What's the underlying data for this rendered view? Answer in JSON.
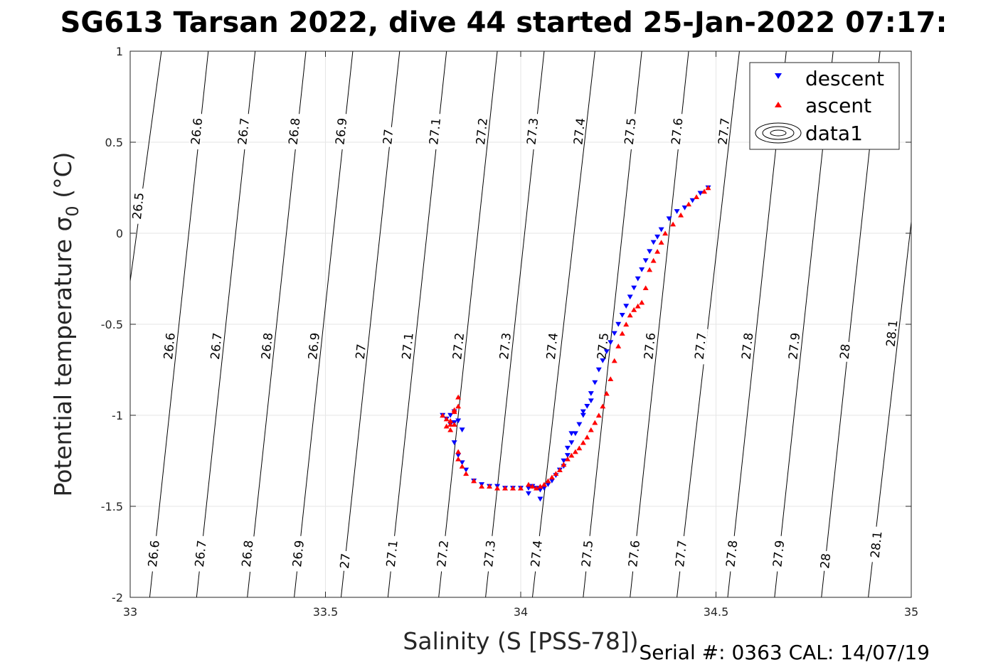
{
  "chart_data": {
    "type": "scatter",
    "title": "SG613 Tarsan 2022, dive 44 started 25-Jan-2022 07:17:",
    "xlabel": "Salinity (S [PSS-78])",
    "ylabel_main": "Potential temperature ",
    "ylabel_sigma": "σ",
    "ylabel_sub": "0",
    "ylabel_unit": " (°C)",
    "xlim": [
      33,
      35
    ],
    "ylim": [
      -2,
      1
    ],
    "xticks": [
      33,
      33.5,
      34,
      34.5,
      35
    ],
    "xtick_labels": [
      "33",
      "33.5",
      "34",
      "34.5",
      "35"
    ],
    "yticks": [
      -2,
      -1.5,
      -1,
      -0.5,
      0,
      0.5,
      1
    ],
    "ytick_labels": [
      "-2",
      "-1.5",
      "-1",
      "-0.5",
      "0",
      "0.5",
      "1"
    ],
    "grid": true,
    "legend_position": "top-right",
    "legend": [
      "descent",
      "ascent",
      "data1"
    ],
    "serial_note": "Serial #: 0363  CAL: 14/07/19",
    "colors": {
      "descent": "#0000ff",
      "ascent": "#ff0000",
      "contour": "#000000",
      "grid": "#e6e6e6"
    },
    "density_contours": {
      "levels": [
        "26.5",
        "26.6",
        "26.7",
        "26.8",
        "26.9",
        "27",
        "27.1",
        "27.2",
        "27.3",
        "27.4",
        "27.5",
        "27.6",
        "27.7",
        "27.8",
        "27.9",
        "28",
        "28.1"
      ],
      "lines": [
        {
          "level": "26.5",
          "s_at_tmin": 32.89,
          "s_at_tmax": 33.08
        },
        {
          "level": "26.6",
          "s_at_tmin": 33.05,
          "s_at_tmax": 33.2
        },
        {
          "level": "26.7",
          "s_at_tmin": 33.17,
          "s_at_tmax": 33.32
        },
        {
          "level": "26.8",
          "s_at_tmin": 33.3,
          "s_at_tmax": 33.45
        },
        {
          "level": "26.9",
          "s_at_tmin": 33.42,
          "s_at_tmax": 33.57
        },
        {
          "level": "27",
          "s_at_tmin": 33.54,
          "s_at_tmax": 33.69
        },
        {
          "level": "27.1",
          "s_at_tmin": 33.66,
          "s_at_tmax": 33.81
        },
        {
          "level": "27.2",
          "s_at_tmin": 33.79,
          "s_at_tmax": 33.94
        },
        {
          "level": "27.3",
          "s_at_tmin": 33.91,
          "s_at_tmax": 34.06
        },
        {
          "level": "27.4",
          "s_at_tmin": 34.03,
          "s_at_tmax": 34.19
        },
        {
          "level": "27.5",
          "s_at_tmin": 34.16,
          "s_at_tmax": 34.31
        },
        {
          "level": "27.6",
          "s_at_tmin": 34.28,
          "s_at_tmax": 34.43
        },
        {
          "level": "27.7",
          "s_at_tmin": 34.4,
          "s_at_tmax": 34.56
        },
        {
          "level": "27.8",
          "s_at_tmin": 34.53,
          "s_at_tmax": 34.68
        },
        {
          "level": "27.9",
          "s_at_tmin": 34.65,
          "s_at_tmax": 34.8
        },
        {
          "level": "28",
          "s_at_tmin": 34.77,
          "s_at_tmax": 34.92
        },
        {
          "level": "28.1",
          "s_at_tmin": 34.89,
          "s_at_tmax": 35.05
        }
      ],
      "labels": [
        {
          "text": "26.5",
          "s": 33.02,
          "t": 0.15
        },
        {
          "text": "26.6",
          "s": 33.17,
          "t": 0.56
        },
        {
          "text": "26.7",
          "s": 33.29,
          "t": 0.56
        },
        {
          "text": "26.8",
          "s": 33.42,
          "t": 0.56
        },
        {
          "text": "26.9",
          "s": 33.54,
          "t": 0.56
        },
        {
          "text": "27",
          "s": 33.66,
          "t": 0.53
        },
        {
          "text": "27.1",
          "s": 33.78,
          "t": 0.56
        },
        {
          "text": "27.2",
          "s": 33.9,
          "t": 0.56
        },
        {
          "text": "27.3",
          "s": 34.03,
          "t": 0.56
        },
        {
          "text": "27.4",
          "s": 34.15,
          "t": 0.56
        },
        {
          "text": "27.5",
          "s": 34.28,
          "t": 0.56
        },
        {
          "text": "27.6",
          "s": 34.4,
          "t": 0.56
        },
        {
          "text": "27.7",
          "s": 34.52,
          "t": 0.56
        },
        {
          "text": "26.6",
          "s": 33.1,
          "t": -0.62
        },
        {
          "text": "26.7",
          "s": 33.22,
          "t": -0.62
        },
        {
          "text": "26.8",
          "s": 33.35,
          "t": -0.62
        },
        {
          "text": "26.9",
          "s": 33.47,
          "t": -0.62
        },
        {
          "text": "27",
          "s": 33.59,
          "t": -0.65
        },
        {
          "text": "27.1",
          "s": 33.71,
          "t": -0.62
        },
        {
          "text": "27.2",
          "s": 33.84,
          "t": -0.62
        },
        {
          "text": "27.3",
          "s": 33.96,
          "t": -0.62
        },
        {
          "text": "27.4",
          "s": 34.08,
          "t": -0.62
        },
        {
          "text": "27.5",
          "s": 34.21,
          "t": -0.62
        },
        {
          "text": "27.6",
          "s": 34.33,
          "t": -0.62
        },
        {
          "text": "27.7",
          "s": 34.46,
          "t": -0.62
        },
        {
          "text": "27.8",
          "s": 34.58,
          "t": -0.62
        },
        {
          "text": "27.9",
          "s": 34.7,
          "t": -0.62
        },
        {
          "text": "28",
          "s": 34.83,
          "t": -0.65
        },
        {
          "text": "28.1",
          "s": 34.95,
          "t": -0.55
        },
        {
          "text": "26.6",
          "s": 33.06,
          "t": -1.76
        },
        {
          "text": "26.7",
          "s": 33.18,
          "t": -1.76
        },
        {
          "text": "26.8",
          "s": 33.3,
          "t": -1.76
        },
        {
          "text": "26.9",
          "s": 33.43,
          "t": -1.76
        },
        {
          "text": "27",
          "s": 33.55,
          "t": -1.8
        },
        {
          "text": "27.1",
          "s": 33.67,
          "t": -1.76
        },
        {
          "text": "27.2",
          "s": 33.8,
          "t": -1.76
        },
        {
          "text": "27.3",
          "s": 33.92,
          "t": -1.76
        },
        {
          "text": "27.4",
          "s": 34.04,
          "t": -1.76
        },
        {
          "text": "27.5",
          "s": 34.17,
          "t": -1.76
        },
        {
          "text": "27.6",
          "s": 34.29,
          "t": -1.76
        },
        {
          "text": "27.7",
          "s": 34.41,
          "t": -1.76
        },
        {
          "text": "27.8",
          "s": 34.54,
          "t": -1.76
        },
        {
          "text": "27.9",
          "s": 34.66,
          "t": -1.76
        },
        {
          "text": "28",
          "s": 34.78,
          "t": -1.8
        },
        {
          "text": "28.1",
          "s": 34.91,
          "t": -1.71
        }
      ]
    },
    "series": [
      {
        "name": "descent",
        "marker": "triangle-down",
        "x": [
          34.48,
          34.46,
          34.44,
          34.42,
          34.4,
          34.38,
          34.36,
          34.35,
          34.34,
          34.33,
          34.32,
          34.31,
          34.3,
          34.29,
          34.28,
          34.27,
          34.26,
          34.25,
          34.24,
          34.23,
          34.22,
          34.21,
          34.2,
          34.19,
          34.18,
          34.18,
          34.17,
          34.16,
          34.16,
          34.15,
          34.14,
          34.13,
          34.12,
          34.12,
          34.11,
          34.11,
          34.1,
          34.09,
          34.08,
          34.07,
          34.06,
          34.05,
          34.04,
          34.03,
          34.02,
          34.0,
          33.98,
          33.96,
          33.94,
          33.92,
          33.9,
          33.88,
          33.86,
          33.85,
          33.84,
          33.83,
          33.82,
          33.81,
          33.8,
          33.82,
          33.83,
          33.85,
          33.83,
          33.84,
          34.05,
          34.02,
          34.13
        ],
        "y": [
          0.25,
          0.22,
          0.18,
          0.14,
          0.12,
          0.08,
          0.02,
          -0.02,
          -0.05,
          -0.1,
          -0.15,
          -0.2,
          -0.25,
          -0.3,
          -0.35,
          -0.4,
          -0.45,
          -0.5,
          -0.55,
          -0.6,
          -0.65,
          -0.7,
          -0.75,
          -0.82,
          -0.88,
          -0.92,
          -0.95,
          -0.98,
          -1.0,
          -1.05,
          -1.1,
          -1.15,
          -1.18,
          -1.22,
          -1.25,
          -1.28,
          -1.3,
          -1.33,
          -1.36,
          -1.38,
          -1.4,
          -1.41,
          -1.4,
          -1.39,
          -1.4,
          -1.4,
          -1.4,
          -1.4,
          -1.39,
          -1.39,
          -1.38,
          -1.36,
          -1.3,
          -1.26,
          -1.22,
          -1.15,
          -1.05,
          -1.02,
          -1.0,
          -1.0,
          -0.98,
          -1.08,
          -1.04,
          -1.03,
          -1.46,
          -1.43,
          -1.1
        ]
      },
      {
        "name": "ascent",
        "marker": "triangle-up",
        "x": [
          34.48,
          34.47,
          34.45,
          34.43,
          34.41,
          34.39,
          34.37,
          34.36,
          34.35,
          34.34,
          34.33,
          34.32,
          34.31,
          34.3,
          34.29,
          34.28,
          34.27,
          34.26,
          34.25,
          34.24,
          34.23,
          34.22,
          34.21,
          34.2,
          34.19,
          34.18,
          34.17,
          34.16,
          34.15,
          34.14,
          34.13,
          34.12,
          34.11,
          34.1,
          34.09,
          34.08,
          34.07,
          34.06,
          34.05,
          34.04,
          34.03,
          34.02,
          34.0,
          33.98,
          33.96,
          33.94,
          33.92,
          33.9,
          33.88,
          33.86,
          33.85,
          33.84,
          33.84,
          33.83,
          33.82,
          33.81,
          33.8,
          33.81,
          33.82,
          33.83,
          33.84,
          33.84,
          33.83,
          33.82
        ],
        "y": [
          0.25,
          0.23,
          0.2,
          0.16,
          0.1,
          0.05,
          0.0,
          -0.05,
          -0.1,
          -0.15,
          -0.2,
          -0.3,
          -0.38,
          -0.4,
          -0.42,
          -0.45,
          -0.5,
          -0.55,
          -0.62,
          -0.7,
          -0.8,
          -0.88,
          -0.95,
          -1.0,
          -1.04,
          -1.08,
          -1.12,
          -1.15,
          -1.18,
          -1.2,
          -1.22,
          -1.24,
          -1.27,
          -1.3,
          -1.32,
          -1.34,
          -1.36,
          -1.38,
          -1.39,
          -1.4,
          -1.39,
          -1.38,
          -1.4,
          -1.4,
          -1.4,
          -1.4,
          -1.39,
          -1.39,
          -1.36,
          -1.32,
          -1.28,
          -1.24,
          -1.2,
          -1.05,
          -1.03,
          -1.02,
          -1.0,
          -1.06,
          -1.05,
          -0.98,
          -0.95,
          -0.9,
          -0.97,
          -1.08
        ]
      }
    ]
  }
}
